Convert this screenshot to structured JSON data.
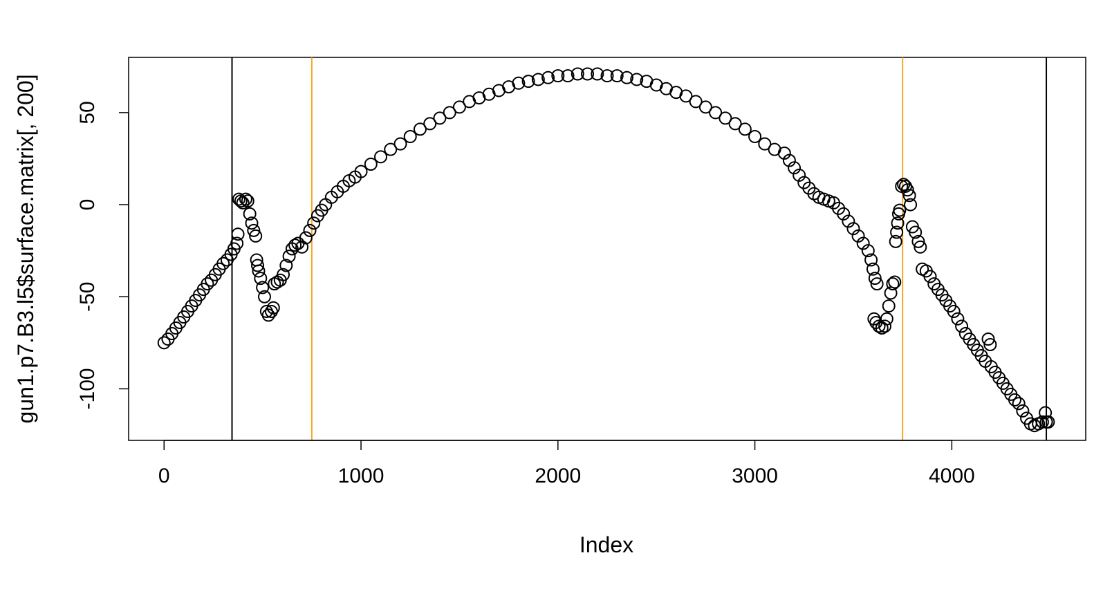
{
  "chart_data": {
    "type": "scatter",
    "title": "",
    "xlabel": "Index",
    "ylabel": "gun1.p7.B3.l5$surface.matrix[, 200]",
    "xlim": [
      -180,
      4680
    ],
    "ylim": [
      -128,
      80
    ],
    "xticks": [
      0,
      1000,
      2000,
      3000,
      4000
    ],
    "yticks": [
      -100,
      -50,
      0,
      50
    ],
    "xtick_labels": [
      "0",
      "1000",
      "2000",
      "3000",
      "4000"
    ],
    "ytick_labels": [
      "-100",
      "-50",
      "0",
      "50"
    ],
    "grid": false,
    "marker": "open-circle",
    "vertical_lines": [
      {
        "x": 345,
        "color": "#000000"
      },
      {
        "x": 750,
        "color": "#f5a623"
      },
      {
        "x": 3750,
        "color": "#f5a623"
      },
      {
        "x": 4480,
        "color": "#000000"
      }
    ],
    "series": [
      {
        "points": [
          [
            0,
            -75
          ],
          [
            20,
            -73
          ],
          [
            40,
            -70
          ],
          [
            60,
            -67
          ],
          [
            80,
            -64
          ],
          [
            100,
            -61
          ],
          [
            120,
            -58
          ],
          [
            140,
            -55
          ],
          [
            160,
            -52
          ],
          [
            180,
            -49
          ],
          [
            200,
            -46
          ],
          [
            220,
            -43
          ],
          [
            240,
            -41
          ],
          [
            260,
            -38
          ],
          [
            280,
            -35
          ],
          [
            300,
            -32
          ],
          [
            320,
            -30
          ],
          [
            340,
            -27
          ],
          [
            355,
            -24
          ],
          [
            370,
            -21
          ],
          [
            375,
            -16
          ],
          [
            380,
            3
          ],
          [
            390,
            2
          ],
          [
            400,
            1
          ],
          [
            415,
            3
          ],
          [
            425,
            2
          ],
          [
            435,
            -5
          ],
          [
            445,
            -10
          ],
          [
            455,
            -14
          ],
          [
            465,
            -17
          ],
          [
            470,
            -30
          ],
          [
            475,
            -33
          ],
          [
            480,
            -36
          ],
          [
            490,
            -40
          ],
          [
            500,
            -45
          ],
          [
            510,
            -50
          ],
          [
            520,
            -58
          ],
          [
            530,
            -60
          ],
          [
            545,
            -58
          ],
          [
            555,
            -56
          ],
          [
            560,
            -43
          ],
          [
            575,
            -42
          ],
          [
            590,
            -41
          ],
          [
            605,
            -38
          ],
          [
            620,
            -33
          ],
          [
            635,
            -28
          ],
          [
            650,
            -24
          ],
          [
            665,
            -22
          ],
          [
            680,
            -21
          ],
          [
            700,
            -23
          ],
          [
            720,
            -18
          ],
          [
            740,
            -14
          ],
          [
            760,
            -10
          ],
          [
            780,
            -6
          ],
          [
            800,
            -3
          ],
          [
            820,
            0
          ],
          [
            850,
            4
          ],
          [
            880,
            7
          ],
          [
            910,
            10
          ],
          [
            940,
            13
          ],
          [
            970,
            15
          ],
          [
            1000,
            18
          ],
          [
            1050,
            22
          ],
          [
            1100,
            26
          ],
          [
            1150,
            30
          ],
          [
            1200,
            33
          ],
          [
            1250,
            37
          ],
          [
            1300,
            41
          ],
          [
            1350,
            44
          ],
          [
            1400,
            47
          ],
          [
            1450,
            50
          ],
          [
            1500,
            53
          ],
          [
            1550,
            56
          ],
          [
            1600,
            58
          ],
          [
            1650,
            60
          ],
          [
            1700,
            62
          ],
          [
            1750,
            64
          ],
          [
            1800,
            66
          ],
          [
            1850,
            67
          ],
          [
            1900,
            68
          ],
          [
            1950,
            69
          ],
          [
            2000,
            70
          ],
          [
            2050,
            70
          ],
          [
            2100,
            71
          ],
          [
            2150,
            71
          ],
          [
            2200,
            71
          ],
          [
            2250,
            70
          ],
          [
            2300,
            70
          ],
          [
            2350,
            69
          ],
          [
            2400,
            68
          ],
          [
            2450,
            67
          ],
          [
            2500,
            65
          ],
          [
            2550,
            63
          ],
          [
            2600,
            61
          ],
          [
            2650,
            59
          ],
          [
            2700,
            56
          ],
          [
            2750,
            53
          ],
          [
            2800,
            50
          ],
          [
            2850,
            47
          ],
          [
            2900,
            44
          ],
          [
            2950,
            41
          ],
          [
            3000,
            37
          ],
          [
            3050,
            33
          ],
          [
            3100,
            30
          ],
          [
            3150,
            28
          ],
          [
            3175,
            24
          ],
          [
            3200,
            20
          ],
          [
            3225,
            16
          ],
          [
            3250,
            12
          ],
          [
            3275,
            9
          ],
          [
            3300,
            6
          ],
          [
            3325,
            4
          ],
          [
            3350,
            3
          ],
          [
            3375,
            2
          ],
          [
            3400,
            1
          ],
          [
            3425,
            -2
          ],
          [
            3450,
            -5
          ],
          [
            3475,
            -9
          ],
          [
            3500,
            -13
          ],
          [
            3525,
            -17
          ],
          [
            3550,
            -21
          ],
          [
            3575,
            -25
          ],
          [
            3590,
            -30
          ],
          [
            3600,
            -35
          ],
          [
            3610,
            -40
          ],
          [
            3620,
            -43
          ],
          [
            3605,
            -62
          ],
          [
            3615,
            -64
          ],
          [
            3630,
            -66
          ],
          [
            3645,
            -67
          ],
          [
            3660,
            -66
          ],
          [
            3670,
            -62
          ],
          [
            3680,
            -55
          ],
          [
            3690,
            -48
          ],
          [
            3700,
            -43
          ],
          [
            3710,
            -42
          ],
          [
            3715,
            -20
          ],
          [
            3720,
            -15
          ],
          [
            3725,
            -10
          ],
          [
            3730,
            -5
          ],
          [
            3735,
            -3
          ],
          [
            3745,
            10
          ],
          [
            3755,
            11
          ],
          [
            3765,
            10
          ],
          [
            3775,
            8
          ],
          [
            3785,
            5
          ],
          [
            3790,
            0
          ],
          [
            3800,
            -12
          ],
          [
            3815,
            -15
          ],
          [
            3830,
            -20
          ],
          [
            3840,
            -23
          ],
          [
            3850,
            -35
          ],
          [
            3870,
            -36
          ],
          [
            3890,
            -39
          ],
          [
            3910,
            -43
          ],
          [
            3930,
            -46
          ],
          [
            3950,
            -49
          ],
          [
            3970,
            -52
          ],
          [
            3990,
            -55
          ],
          [
            4010,
            -58
          ],
          [
            4030,
            -62
          ],
          [
            4050,
            -66
          ],
          [
            4070,
            -70
          ],
          [
            4090,
            -73
          ],
          [
            4110,
            -76
          ],
          [
            4130,
            -79
          ],
          [
            4150,
            -82
          ],
          [
            4170,
            -85
          ],
          [
            4185,
            -73
          ],
          [
            4195,
            -76
          ],
          [
            4200,
            -88
          ],
          [
            4220,
            -91
          ],
          [
            4240,
            -94
          ],
          [
            4260,
            -97
          ],
          [
            4280,
            -100
          ],
          [
            4300,
            -103
          ],
          [
            4320,
            -106
          ],
          [
            4340,
            -108
          ],
          [
            4360,
            -112
          ],
          [
            4380,
            -116
          ],
          [
            4400,
            -119
          ],
          [
            4420,
            -120
          ],
          [
            4440,
            -119
          ],
          [
            4460,
            -118
          ],
          [
            4475,
            -113
          ],
          [
            4480,
            -118
          ],
          [
            4490,
            -118
          ]
        ]
      }
    ]
  }
}
